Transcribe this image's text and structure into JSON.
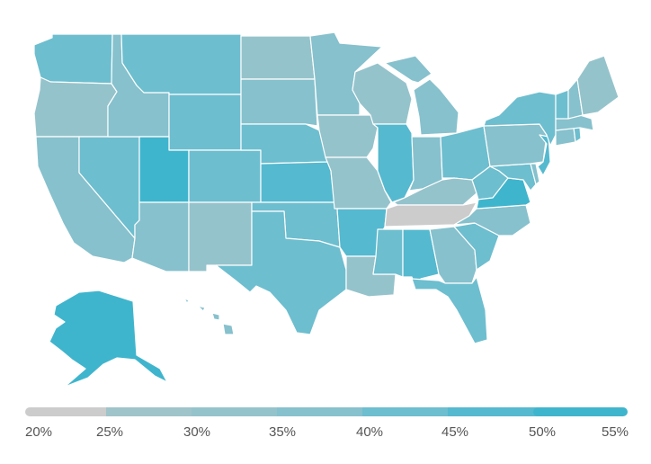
{
  "legend": {
    "bins": [
      {
        "from": 20,
        "to": 25,
        "color": "#cccccc"
      },
      {
        "from": 25,
        "to": 30,
        "color": "#9fc4ca"
      },
      {
        "from": 30,
        "to": 35,
        "color": "#95c3cb"
      },
      {
        "from": 35,
        "to": 40,
        "color": "#86c1cd"
      },
      {
        "from": 40,
        "to": 45,
        "color": "#6dbecf"
      },
      {
        "from": 45,
        "to": 50,
        "color": "#55b9cf"
      },
      {
        "from": 50,
        "to": 55,
        "color": "#3fb5cd"
      }
    ],
    "ticks": [
      "20%",
      "25%",
      "30%",
      "35%",
      "40%",
      "45%",
      "50%",
      "55%"
    ]
  },
  "states": [
    {
      "id": "WA",
      "value": 42
    },
    {
      "id": "OR",
      "value": 30
    },
    {
      "id": "CA",
      "value": 37
    },
    {
      "id": "NV",
      "value": 41
    },
    {
      "id": "ID",
      "value": 38
    },
    {
      "id": "MT",
      "value": 40
    },
    {
      "id": "WY",
      "value": 40
    },
    {
      "id": "UT",
      "value": 52
    },
    {
      "id": "AZ",
      "value": 38
    },
    {
      "id": "CO",
      "value": 41
    },
    {
      "id": "NM",
      "value": 30
    },
    {
      "id": "ND",
      "value": 31
    },
    {
      "id": "SD",
      "value": 36
    },
    {
      "id": "NE",
      "value": 40
    },
    {
      "id": "KS",
      "value": 46
    },
    {
      "id": "OK",
      "value": 41
    },
    {
      "id": "TX",
      "value": 41
    },
    {
      "id": "MN",
      "value": 37
    },
    {
      "id": "IA",
      "value": 32
    },
    {
      "id": "MO",
      "value": 31
    },
    {
      "id": "AR",
      "value": 47
    },
    {
      "id": "LA",
      "value": 30
    },
    {
      "id": "WI",
      "value": 33
    },
    {
      "id": "IL",
      "value": 48
    },
    {
      "id": "MS",
      "value": 40
    },
    {
      "id": "MI",
      "value": 37
    },
    {
      "id": "IN",
      "value": 36
    },
    {
      "id": "KY",
      "value": 34
    },
    {
      "id": "TN",
      "value": 22
    },
    {
      "id": "AL",
      "value": 45
    },
    {
      "id": "GA",
      "value": 38
    },
    {
      "id": "FL",
      "value": 42
    },
    {
      "id": "OH",
      "value": 40
    },
    {
      "id": "WV",
      "value": 43
    },
    {
      "id": "VA",
      "value": 50
    },
    {
      "id": "NC",
      "value": 38
    },
    {
      "id": "SC",
      "value": 40
    },
    {
      "id": "PA",
      "value": 37
    },
    {
      "id": "NY",
      "value": 43
    },
    {
      "id": "ME",
      "value": 32
    },
    {
      "id": "VT",
      "value": 40
    },
    {
      "id": "NH",
      "value": 38
    },
    {
      "id": "MA",
      "value": 36
    },
    {
      "id": "CT",
      "value": 38
    },
    {
      "id": "RI",
      "value": 40
    },
    {
      "id": "NJ",
      "value": 45
    },
    {
      "id": "DE",
      "value": 38
    },
    {
      "id": "MD",
      "value": 40
    },
    {
      "id": "AK",
      "value": 50
    },
    {
      "id": "HI",
      "value": 37
    }
  ]
}
